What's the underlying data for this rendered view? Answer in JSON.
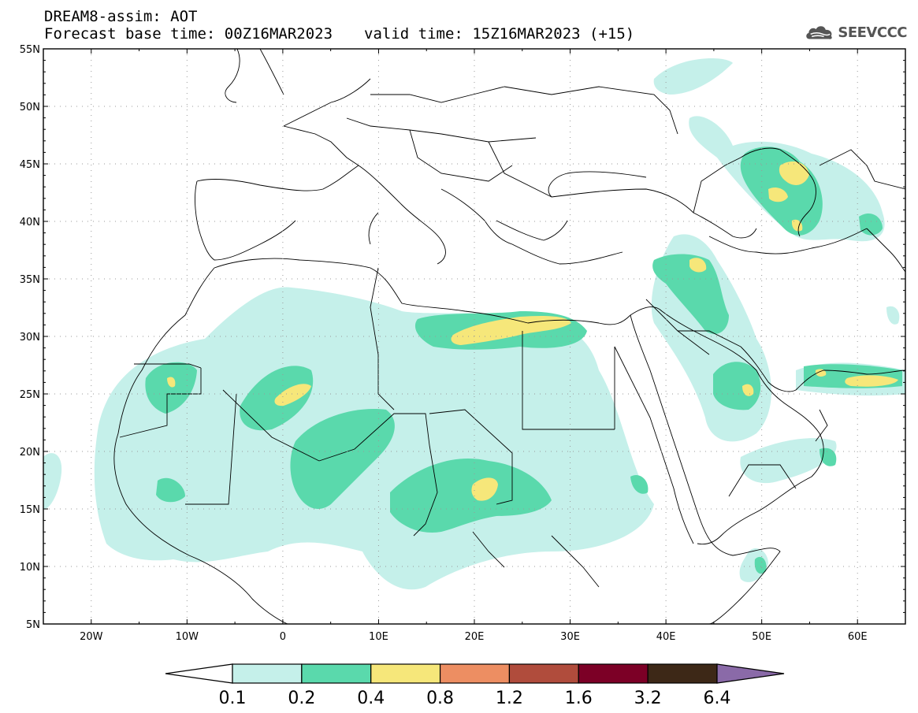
{
  "header": {
    "title": "DREAM8-assim: AOT",
    "base_time": "Forecast base time: 00Z16MAR2023",
    "valid_time": "valid time: 15Z16MAR2023 (+15)"
  },
  "logo": {
    "text": "SEEVCCC",
    "icon": "cloud-icon"
  },
  "map": {
    "lon_range": [
      -25,
      65
    ],
    "lat_range": [
      5,
      55
    ],
    "lat_labels": [
      "55N",
      "50N",
      "45N",
      "40N",
      "35N",
      "30N",
      "25N",
      "20N",
      "15N",
      "10N",
      "5N"
    ],
    "lon_labels": [
      "20W",
      "10W",
      "0",
      "10E",
      "20E",
      "30E",
      "40E",
      "50E",
      "60E"
    ]
  },
  "colorbar": {
    "levels": [
      "0.1",
      "0.2",
      "0.4",
      "0.8",
      "1.2",
      "1.6",
      "3.2",
      "6.4"
    ],
    "colors": [
      "#ffffff",
      "#c5f0ea",
      "#5ad9ac",
      "#f6e77a",
      "#ed8e62",
      "#b04c3c",
      "#7c0026",
      "#3d2817",
      "#8a6aa8"
    ]
  }
}
